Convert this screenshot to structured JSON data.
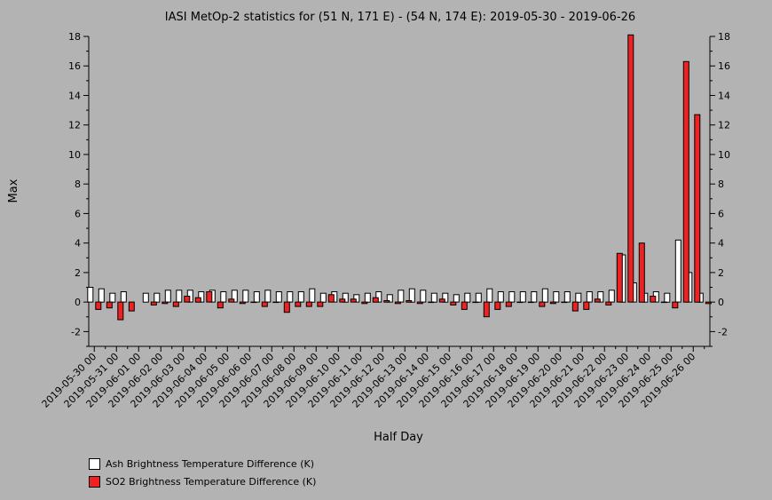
{
  "chart_data": {
    "type": "bar",
    "title": "IASI MetOp-2 statistics for (51 N, 171 E) - (54 N, 174 E): 2019-05-30 - 2019-06-26",
    "xlabel": "Half Day",
    "ylabel": "Max",
    "ylim": [
      -3,
      18
    ],
    "yticks": [
      -2,
      0,
      2,
      4,
      6,
      8,
      10,
      12,
      14,
      16,
      18
    ],
    "grid": false,
    "legend_position": "bottom-left",
    "categories": [
      "2019-05-30 00",
      "2019-05-30 12",
      "2019-05-31 00",
      "2019-05-31 12",
      "2019-06-01 00",
      "2019-06-01 12",
      "2019-06-02 00",
      "2019-06-02 12",
      "2019-06-03 00",
      "2019-06-03 12",
      "2019-06-04 00",
      "2019-06-04 12",
      "2019-06-05 00",
      "2019-06-05 12",
      "2019-06-06 00",
      "2019-06-06 12",
      "2019-06-07 00",
      "2019-06-07 12",
      "2019-06-08 00",
      "2019-06-08 12",
      "2019-06-09 00",
      "2019-06-09 12",
      "2019-06-10 00",
      "2019-06-10 12",
      "2019-06-11 00",
      "2019-06-11 12",
      "2019-06-12 00",
      "2019-06-12 12",
      "2019-06-13 00",
      "2019-06-13 12",
      "2019-06-14 00",
      "2019-06-14 12",
      "2019-06-15 00",
      "2019-06-15 12",
      "2019-06-16 00",
      "2019-06-16 12",
      "2019-06-17 00",
      "2019-06-17 12",
      "2019-06-18 00",
      "2019-06-18 12",
      "2019-06-19 00",
      "2019-06-19 12",
      "2019-06-20 00",
      "2019-06-20 12",
      "2019-06-21 00",
      "2019-06-21 12",
      "2019-06-22 00",
      "2019-06-22 12",
      "2019-06-23 00",
      "2019-06-23 12",
      "2019-06-24 00",
      "2019-06-24 12",
      "2019-06-25 00",
      "2019-06-25 12",
      "2019-06-26 00",
      "2019-06-26 12"
    ],
    "tick_labels": [
      "2019-05-30 00",
      "2019-05-31 00",
      "2019-06-01 00",
      "2019-06-02 00",
      "2019-06-03 00",
      "2019-06-04 00",
      "2019-06-05 00",
      "2019-06-06 00",
      "2019-06-07 00",
      "2019-06-08 00",
      "2019-06-09 00",
      "2019-06-10 00",
      "2019-06-11 00",
      "2019-06-12 00",
      "2019-06-13 00",
      "2019-06-14 00",
      "2019-06-15 00",
      "2019-06-16 00",
      "2019-06-17 00",
      "2019-06-18 00",
      "2019-06-19 00",
      "2019-06-20 00",
      "2019-06-21 00",
      "2019-06-22 00",
      "2019-06-23 00",
      "2019-06-24 00",
      "2019-06-25 00",
      "2019-06-26 00"
    ],
    "series": [
      {
        "name": "Ash Brightness Temperature Difference (K)",
        "color": "#ffffff",
        "values": [
          1.0,
          0.9,
          0.6,
          0.7,
          null,
          0.6,
          0.6,
          0.8,
          0.8,
          0.8,
          0.7,
          0.8,
          0.7,
          0.8,
          0.8,
          0.7,
          0.8,
          0.7,
          0.7,
          0.7,
          0.9,
          0.6,
          0.7,
          0.6,
          0.5,
          0.6,
          0.7,
          0.5,
          0.8,
          0.9,
          0.8,
          0.6,
          0.6,
          0.5,
          0.6,
          0.6,
          0.9,
          0.7,
          0.7,
          0.7,
          0.7,
          0.9,
          0.7,
          0.7,
          0.6,
          0.7,
          0.7,
          0.8,
          3.2,
          1.3,
          0.6,
          0.7,
          0.6,
          4.2,
          2.0,
          0.6
        ]
      },
      {
        "name": "SO2 Brightness Temperature Difference (K)",
        "color": "#ee2222",
        "values": [
          -0.5,
          -0.4,
          -1.2,
          -0.6,
          null,
          -0.2,
          -0.1,
          -0.3,
          0.4,
          0.3,
          0.7,
          -0.4,
          0.2,
          -0.1,
          0.0,
          -0.3,
          0.0,
          -0.7,
          -0.3,
          -0.3,
          -0.3,
          0.5,
          0.2,
          0.2,
          -0.1,
          0.3,
          0.1,
          -0.1,
          0.1,
          -0.1,
          0.0,
          0.2,
          -0.2,
          -0.5,
          0.0,
          -1.0,
          -0.5,
          -0.3,
          0.0,
          0.0,
          -0.3,
          -0.1,
          0.0,
          -0.6,
          -0.5,
          0.2,
          -0.2,
          3.3,
          18.1,
          4.0,
          0.4,
          0.0,
          -0.4,
          16.3,
          12.7,
          -0.1
        ]
      }
    ]
  }
}
